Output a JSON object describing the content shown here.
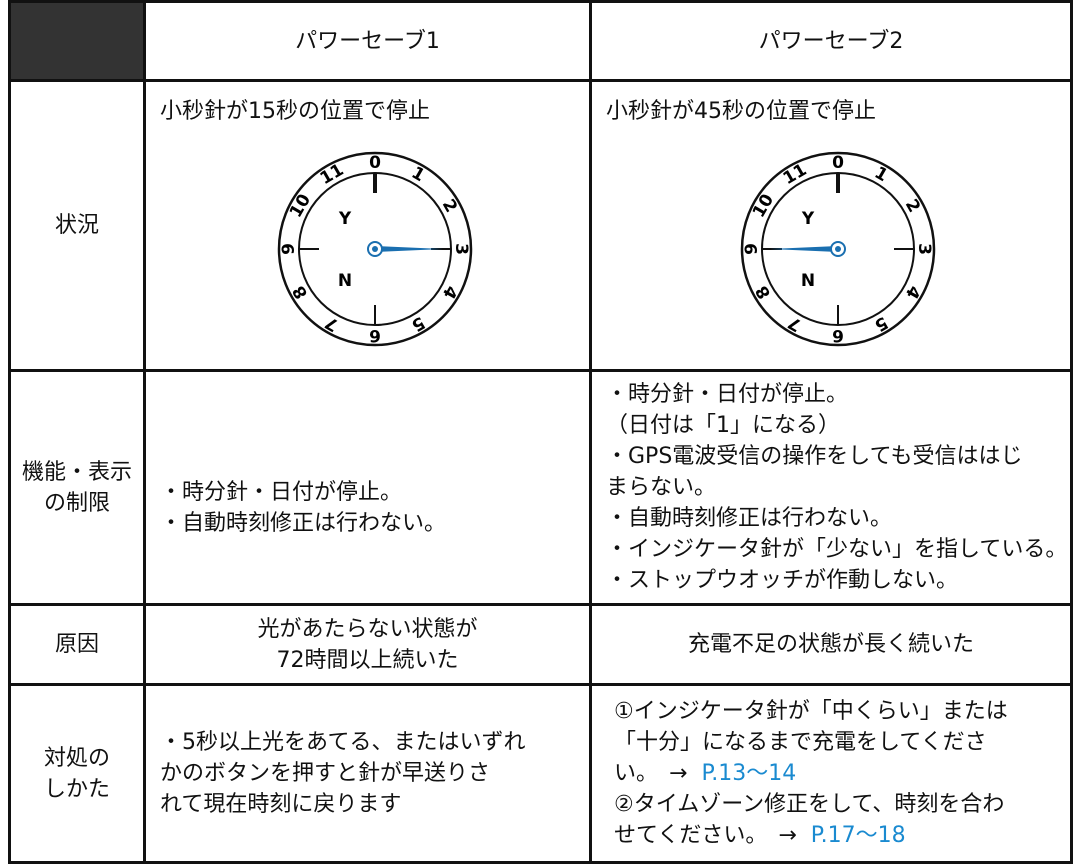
{
  "header": {
    "columns": [
      "パワーセーブ1",
      "パワーセーブ2"
    ]
  },
  "dial": {
    "numbers": [
      "0",
      "1",
      "2",
      "3",
      "4",
      "5",
      "6",
      "7",
      "8",
      "9",
      "10",
      "11"
    ],
    "marks": [
      "Y",
      "N"
    ]
  },
  "rows": [
    {
      "label": [
        "状況"
      ],
      "cells": [
        {
          "lines": [
            {
              "text": "小秒針が15秒の位置で停止"
            }
          ]
        },
        {
          "lines": [
            {
              "text": "小秒針が45秒の位置で停止"
            }
          ]
        }
      ]
    },
    {
      "label": [
        "機能・表示",
        "の制限"
      ],
      "cells": [
        {
          "lines": [
            {
              "text": "・時分針・日付が停止。"
            },
            {
              "text": "・自動時刻修正は行わない。"
            }
          ]
        },
        {
          "lines": [
            {
              "text": "・時分針・日付が停止。"
            },
            {
              "text": "（日付は「1」になる）"
            },
            {
              "text": "・GPS電波受信の操作をしても受信ははじ"
            },
            {
              "text": "まらない。"
            },
            {
              "text": "・自動時刻修正は行わない。"
            },
            {
              "text": "・インジケータ針が「少ない」を指している。"
            },
            {
              "text": "・ストップウオッチが作動しない。"
            }
          ]
        }
      ]
    },
    {
      "label": [
        "原因"
      ],
      "cells": [
        {
          "lines": [
            {
              "text": "光があたらない状態が"
            },
            {
              "text": "72時間以上続いた"
            }
          ]
        },
        {
          "lines": [
            {
              "text": "充電不足の状態が長く続いた"
            }
          ]
        }
      ]
    },
    {
      "label": [
        "対処の",
        "しかた"
      ],
      "cells": [
        {
          "lines": [
            {
              "text": "・5秒以上光をあてる、またはいずれ"
            },
            {
              "text": "かのボタンを押すと針が早送りさ"
            },
            {
              "text": "れて現在時刻に戻ります"
            }
          ]
        },
        {
          "lines": [
            {
              "text": "①インジケータ針が「中くらい」または"
            },
            {
              "text": "「十分」になるまで充電をしてくださ"
            },
            {
              "text": "い。　→",
              "link": "P.13〜14"
            },
            {
              "text": "②タイムゾーン修正をして、時刻を合わ"
            },
            {
              "text": "せてください。　→",
              "link": "P.17〜18"
            }
          ]
        }
      ]
    }
  ]
}
